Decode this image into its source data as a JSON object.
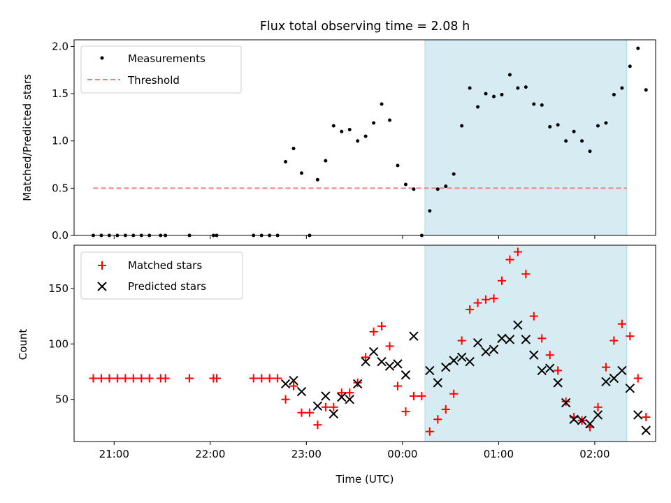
{
  "figure_title": "Flux total observing time = 2.08 h",
  "colors": {
    "highlight": "#add8e6",
    "measurement": "#000000",
    "threshold": "#f08080",
    "matched": "#ff0000",
    "predicted": "#000000"
  },
  "chart_data": [
    {
      "type": "scatter",
      "title": "Flux total observing time = 2.08 h",
      "xlabel": "",
      "ylabel": "Matched/Predicted stars",
      "xlim": [
        "20:35",
        "02:38"
      ],
      "ylim": [
        0,
        2.07
      ],
      "yticks": [
        "0.0",
        "0.5",
        "1.0",
        "1.5",
        "2.0"
      ],
      "xticks": [
        "21:00",
        "22:00",
        "23:00",
        "00:00",
        "01:00",
        "02:00"
      ],
      "grid": false,
      "legend_position": "top-left",
      "shaded_span": [
        "00:14",
        "02:20"
      ],
      "legend": [
        "Measurements",
        "Threshold"
      ],
      "threshold": {
        "name": "Threshold",
        "y": 0.5,
        "x": [
          "20:47",
          "02:20"
        ]
      },
      "series": [
        {
          "name": "Measurements",
          "points": [
            [
              "20:47",
              0.0
            ],
            [
              "20:52",
              0.0
            ],
            [
              "20:57",
              0.0
            ],
            [
              "21:02",
              0.0
            ],
            [
              "21:07",
              0.0
            ],
            [
              "21:12",
              0.0
            ],
            [
              "21:17",
              0.0
            ],
            [
              "21:22",
              0.0
            ],
            [
              "21:29",
              0.0
            ],
            [
              "21:32",
              0.0
            ],
            [
              "21:47",
              0.0
            ],
            [
              "22:02",
              0.0
            ],
            [
              "22:04",
              0.0
            ],
            [
              "22:27",
              0.0
            ],
            [
              "22:32",
              0.0
            ],
            [
              "22:37",
              0.0
            ],
            [
              "22:42",
              0.0
            ],
            [
              "22:47",
              0.78
            ],
            [
              "22:52",
              0.92
            ],
            [
              "22:57",
              0.66
            ],
            [
              "23:02",
              0.0
            ],
            [
              "23:07",
              0.59
            ],
            [
              "23:12",
              0.79
            ],
            [
              "23:17",
              1.16
            ],
            [
              "23:22",
              1.1
            ],
            [
              "23:27",
              1.12
            ],
            [
              "23:32",
              1.0
            ],
            [
              "23:37",
              1.05
            ],
            [
              "23:42",
              1.19
            ],
            [
              "23:47",
              1.39
            ],
            [
              "23:52",
              1.22
            ],
            [
              "23:57",
              0.74
            ],
            [
              "00:02",
              0.54
            ],
            [
              "00:07",
              0.49
            ],
            [
              "00:12",
              0.0
            ],
            [
              "00:17",
              0.26
            ],
            [
              "00:22",
              0.49
            ],
            [
              "00:27",
              0.52
            ],
            [
              "00:32",
              0.65
            ],
            [
              "00:37",
              1.16
            ],
            [
              "00:42",
              1.56
            ],
            [
              "00:47",
              1.36
            ],
            [
              "00:52",
              1.5
            ],
            [
              "00:57",
              1.47
            ],
            [
              "01:02",
              1.49
            ],
            [
              "01:07",
              1.7
            ],
            [
              "01:12",
              1.56
            ],
            [
              "01:17",
              1.57
            ],
            [
              "01:22",
              1.39
            ],
            [
              "01:27",
              1.38
            ],
            [
              "01:32",
              1.15
            ],
            [
              "01:37",
              1.17
            ],
            [
              "01:42",
              1.0
            ],
            [
              "01:47",
              1.1
            ],
            [
              "01:52",
              1.0
            ],
            [
              "01:57",
              0.89
            ],
            [
              "02:02",
              1.16
            ],
            [
              "02:07",
              1.19
            ],
            [
              "02:12",
              1.49
            ],
            [
              "02:17",
              1.56
            ],
            [
              "02:22",
              1.79
            ],
            [
              "02:27",
              1.98
            ],
            [
              "02:32",
              1.54
            ]
          ]
        }
      ]
    },
    {
      "type": "scatter",
      "title": "",
      "xlabel": "Time (UTC)",
      "ylabel": "Count",
      "xlim": [
        "20:35",
        "02:38"
      ],
      "ylim": [
        12,
        189
      ],
      "yticks": [
        "50",
        "100",
        "150"
      ],
      "xticks": [
        "21:00",
        "22:00",
        "23:00",
        "00:00",
        "01:00",
        "02:00"
      ],
      "grid": false,
      "legend_position": "top-left",
      "shaded_span": [
        "00:14",
        "02:20"
      ],
      "legend": [
        "Matched stars",
        "Predicted stars"
      ],
      "series": [
        {
          "name": "Matched stars",
          "points": [
            [
              "20:47",
              69
            ],
            [
              "20:52",
              69
            ],
            [
              "20:57",
              69
            ],
            [
              "21:02",
              69
            ],
            [
              "21:07",
              69
            ],
            [
              "21:12",
              69
            ],
            [
              "21:17",
              69
            ],
            [
              "21:22",
              69
            ],
            [
              "21:29",
              69
            ],
            [
              "21:32",
              69
            ],
            [
              "21:47",
              69
            ],
            [
              "22:02",
              69
            ],
            [
              "22:04",
              69
            ],
            [
              "22:27",
              69
            ],
            [
              "22:32",
              69
            ],
            [
              "22:37",
              69
            ],
            [
              "22:42",
              69
            ],
            [
              "22:47",
              50
            ],
            [
              "22:52",
              62
            ],
            [
              "22:57",
              38
            ],
            [
              "23:02",
              38
            ],
            [
              "23:07",
              27
            ],
            [
              "23:12",
              43
            ],
            [
              "23:17",
              43
            ],
            [
              "23:22",
              56
            ],
            [
              "23:27",
              56
            ],
            [
              "23:32",
              65
            ],
            [
              "23:37",
              88
            ],
            [
              "23:42",
              111
            ],
            [
              "23:47",
              116
            ],
            [
              "23:52",
              98
            ],
            [
              "23:57",
              62
            ],
            [
              "00:02",
              39
            ],
            [
              "00:07",
              53
            ],
            [
              "00:12",
              53
            ],
            [
              "00:17",
              21
            ],
            [
              "00:22",
              32
            ],
            [
              "00:27",
              41
            ],
            [
              "00:32",
              55
            ],
            [
              "00:37",
              103
            ],
            [
              "00:42",
              131
            ],
            [
              "00:47",
              137
            ],
            [
              "00:52",
              140
            ],
            [
              "00:57",
              141
            ],
            [
              "01:02",
              157
            ],
            [
              "01:07",
              176
            ],
            [
              "01:12",
              183
            ],
            [
              "01:17",
              163
            ],
            [
              "01:22",
              125
            ],
            [
              "01:27",
              105
            ],
            [
              "01:32",
              90
            ],
            [
              "01:37",
              76
            ],
            [
              "01:42",
              48
            ],
            [
              "01:47",
              34
            ],
            [
              "01:52",
              31
            ],
            [
              "01:57",
              25
            ],
            [
              "02:02",
              43
            ],
            [
              "02:07",
              79
            ],
            [
              "02:12",
              103
            ],
            [
              "02:17",
              118
            ],
            [
              "02:22",
              107
            ],
            [
              "02:27",
              69
            ],
            [
              "02:32",
              34
            ]
          ]
        },
        {
          "name": "Predicted stars",
          "points": [
            [
              "22:47",
              64
            ],
            [
              "22:52",
              67
            ],
            [
              "22:57",
              57
            ],
            [
              "23:07",
              44
            ],
            [
              "23:12",
              53
            ],
            [
              "23:17",
              37
            ],
            [
              "23:22",
              52
            ],
            [
              "23:27",
              50
            ],
            [
              "23:32",
              64
            ],
            [
              "23:37",
              84
            ],
            [
              "23:42",
              93
            ],
            [
              "23:47",
              84
            ],
            [
              "23:52",
              80
            ],
            [
              "23:57",
              82
            ],
            [
              "00:02",
              72
            ],
            [
              "00:07",
              107
            ],
            [
              "00:17",
              76
            ],
            [
              "00:22",
              65
            ],
            [
              "00:27",
              79
            ],
            [
              "00:32",
              85
            ],
            [
              "00:37",
              88
            ],
            [
              "00:42",
              84
            ],
            [
              "00:47",
              101
            ],
            [
              "00:52",
              93
            ],
            [
              "00:57",
              95
            ],
            [
              "01:02",
              105
            ],
            [
              "01:07",
              104
            ],
            [
              "01:12",
              117
            ],
            [
              "01:17",
              104
            ],
            [
              "01:22",
              90
            ],
            [
              "01:27",
              76
            ],
            [
              "01:32",
              78
            ],
            [
              "01:37",
              65
            ],
            [
              "01:42",
              47
            ],
            [
              "01:47",
              32
            ],
            [
              "01:52",
              31
            ],
            [
              "01:57",
              28
            ],
            [
              "02:02",
              36
            ],
            [
              "02:07",
              66
            ],
            [
              "02:12",
              69
            ],
            [
              "02:17",
              76
            ],
            [
              "02:22",
              60
            ],
            [
              "02:27",
              36
            ],
            [
              "02:32",
              22
            ]
          ]
        }
      ]
    }
  ]
}
